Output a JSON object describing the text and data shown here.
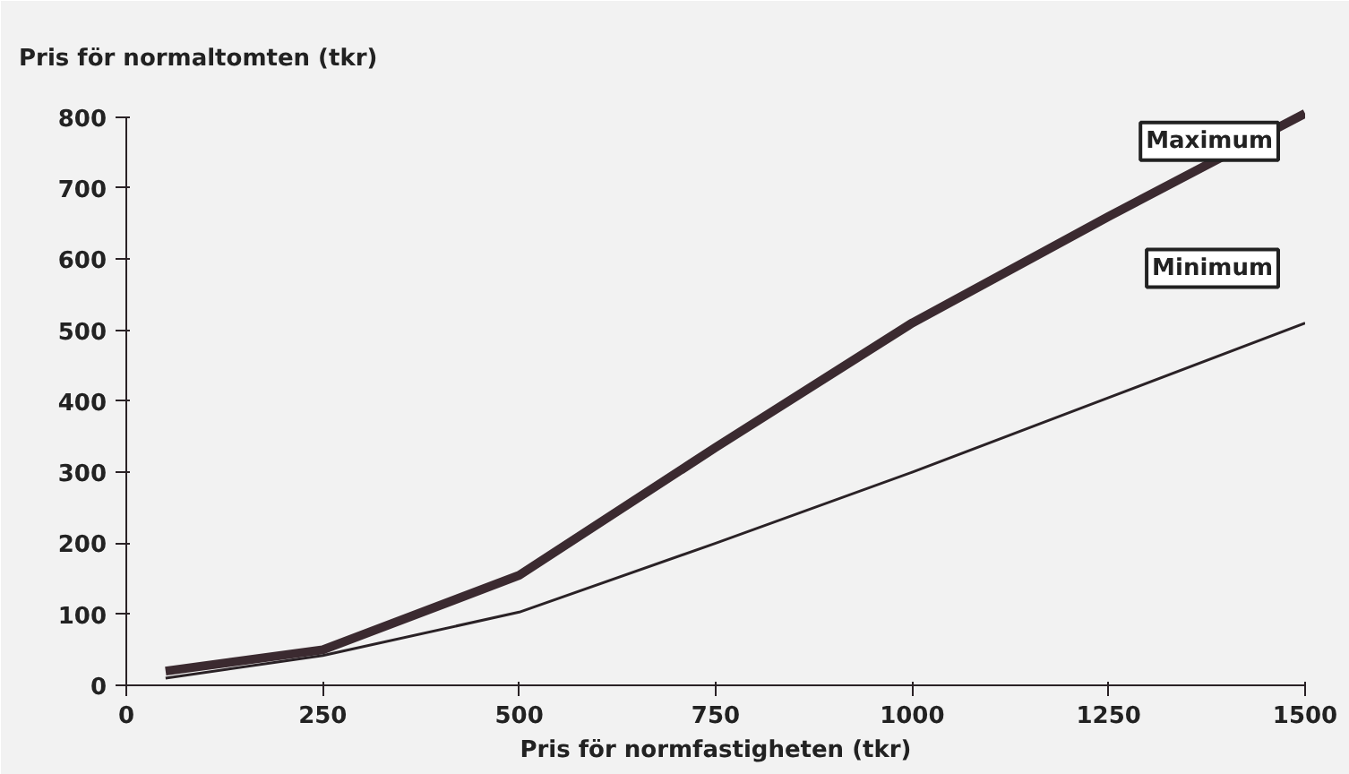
{
  "chart_data": {
    "type": "line",
    "ylabel": "Pris för normaltomten (tkr)",
    "xlabel": "Pris för normfastigheten (tkr)",
    "xlim": [
      0,
      1500
    ],
    "ylim": [
      0,
      850
    ],
    "xticks": [
      0,
      250,
      500,
      750,
      1000,
      1250,
      1500
    ],
    "yticks": [
      0,
      100,
      200,
      300,
      400,
      500,
      600,
      700,
      800
    ],
    "grid": false,
    "marker": "none",
    "line_style": "solid",
    "x": [
      50,
      250,
      500,
      750,
      1000,
      1250,
      1500
    ],
    "series": [
      {
        "name": "Maximum",
        "color": "#3b2a30",
        "values": [
          20,
          50,
          155,
          335,
          510,
          660,
          805
        ]
      },
      {
        "name": "Minimum",
        "color": "#2a2226",
        "values": [
          10,
          42,
          103,
          200,
          300,
          405,
          510
        ]
      }
    ]
  }
}
